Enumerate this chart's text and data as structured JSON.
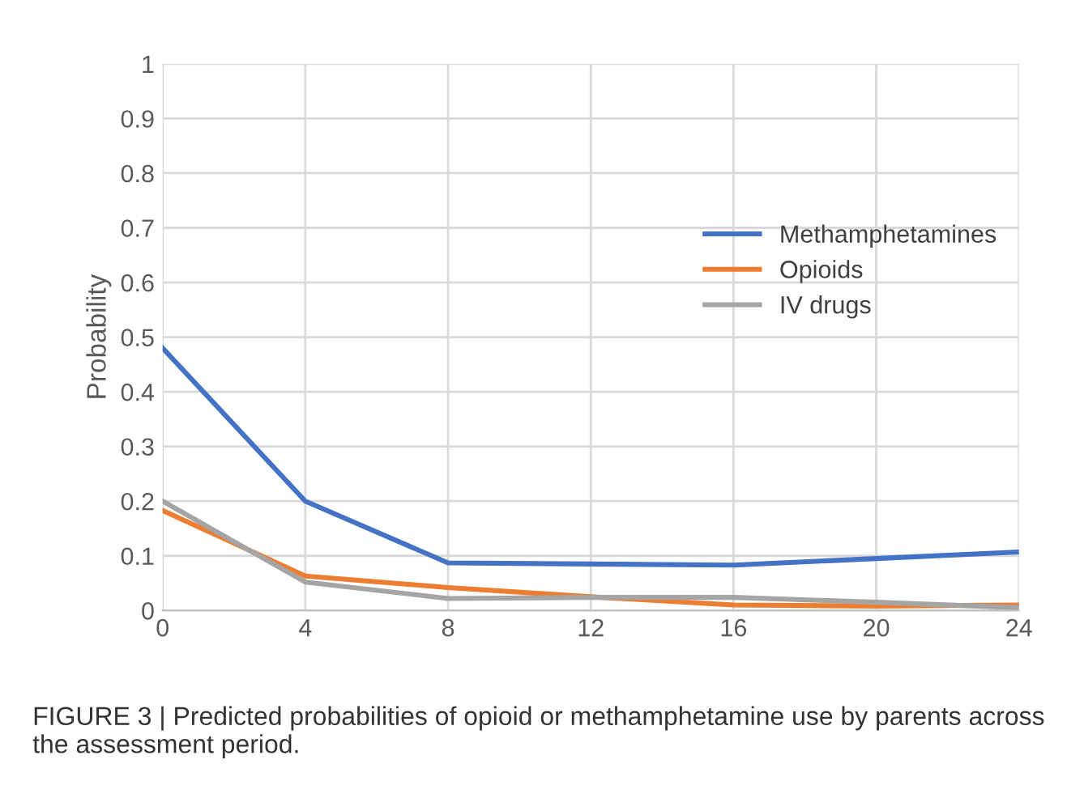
{
  "chart_data": {
    "type": "line",
    "ylabel": "Probability",
    "x": [
      0,
      4,
      8,
      12,
      16,
      20,
      24
    ],
    "series": [
      {
        "name": "Methamphetamines",
        "color": "#4472c4",
        "values": [
          0.48,
          0.2,
          0.087,
          0.085,
          0.083,
          0.095,
          0.107
        ]
      },
      {
        "name": "Opioids",
        "color": "#ed7d31",
        "values": [
          0.183,
          0.063,
          0.042,
          0.025,
          0.01,
          0.008,
          0.01
        ]
      },
      {
        "name": "IV drugs",
        "color": "#a5a5a5",
        "values": [
          0.2,
          0.052,
          0.022,
          0.024,
          0.024,
          0.015,
          0.005
        ]
      }
    ],
    "xlim": [
      0,
      24
    ],
    "xticks": [
      0,
      4,
      8,
      12,
      16,
      20,
      24
    ],
    "ylim": [
      0,
      1
    ],
    "yticks": [
      0,
      0.1,
      0.2,
      0.3,
      0.4,
      0.5,
      0.6,
      0.7,
      0.8,
      0.9,
      1
    ],
    "grid": true,
    "legend": "right",
    "marker": "none",
    "line_style": "solid",
    "annotations": [
      "FIGURE 3 | Predicted probabilities of opioid or methamphetamine use by parents across the assessment period."
    ]
  }
}
